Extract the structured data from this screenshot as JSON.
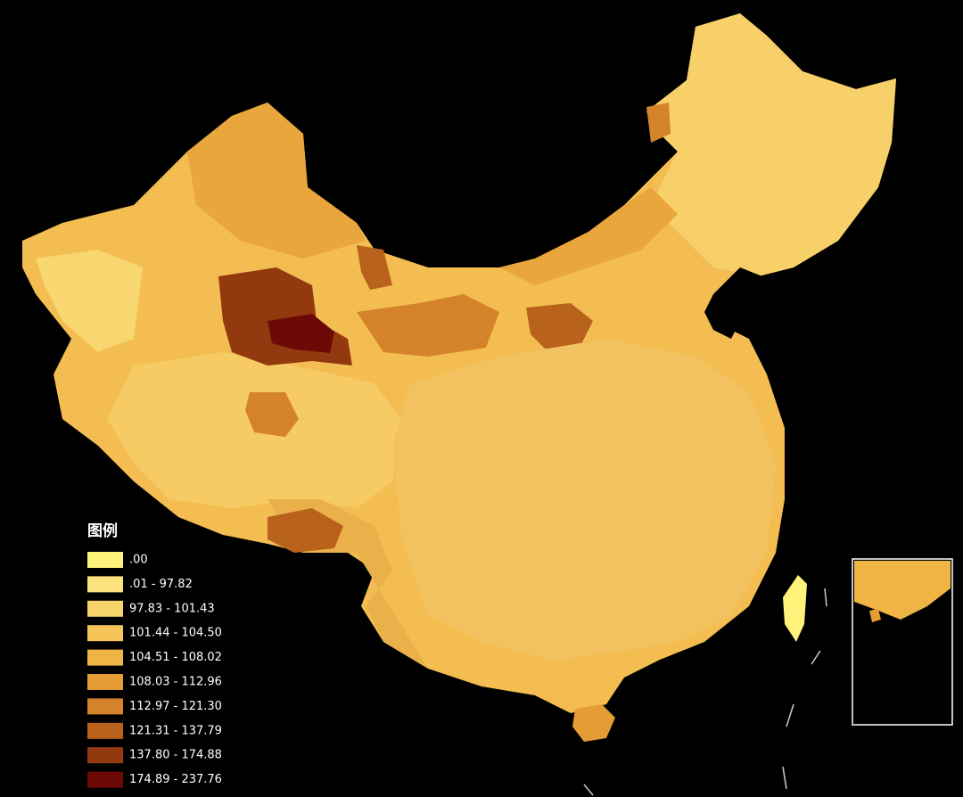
{
  "legend": {
    "title": "图例",
    "items": [
      {
        "label": ".00",
        "color": "#fdf27a"
      },
      {
        "label": ".01 - 97.82",
        "color": "#fbe27d"
      },
      {
        "label": "97.83 - 101.43",
        "color": "#f9d46a"
      },
      {
        "label": "101.44 - 104.50",
        "color": "#f5c55a"
      },
      {
        "label": "104.51 - 108.02",
        "color": "#f0b445"
      },
      {
        "label": "108.03 - 112.96",
        "color": "#e49d35"
      },
      {
        "label": "112.97 - 121.30",
        "color": "#d4832a"
      },
      {
        "label": "121.31 - 137.79",
        "color": "#b8621c"
      },
      {
        "label": "137.80 - 174.88",
        "color": "#93390f"
      },
      {
        "label": "174.89 - 237.76",
        "color": "#6e0a06"
      }
    ]
  }
}
